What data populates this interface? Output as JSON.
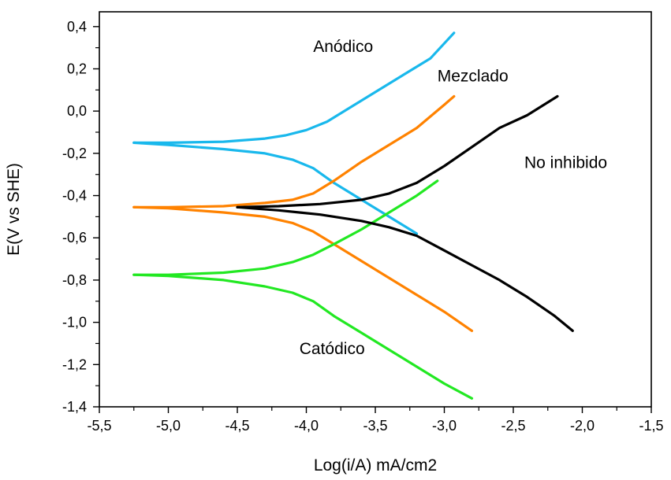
{
  "chart_data": {
    "type": "line",
    "title": "",
    "xlabel": "Log(i/A) mA/cm2",
    "ylabel": "E(V vs SHE)",
    "xlim": [
      -5.5,
      -1.5
    ],
    "ylim": [
      -1.4,
      0.47
    ],
    "xticks": [
      -5.5,
      -5.0,
      -4.5,
      -4.0,
      -3.5,
      -3.0,
      -2.5,
      -2.0,
      -1.5
    ],
    "xtick_labels": [
      "-5,5",
      "-5,0",
      "-4,5",
      "-4,0",
      "-3,5",
      "-3,0",
      "-2,5",
      "-2,0",
      "-1,5"
    ],
    "yticks": [
      0.4,
      0.2,
      0.0,
      -0.2,
      -0.4,
      -0.6,
      -0.8,
      -1.0,
      -1.2,
      -1.4
    ],
    "ytick_labels": [
      "0,4",
      "0,2",
      "0,0",
      "-0,2",
      "-0,4",
      "-0,6",
      "-0,8",
      "-1,0",
      "-1,2",
      "-1,4"
    ],
    "grid": false,
    "series": [
      {
        "name": "Anódico",
        "color": "#19b8ec",
        "branches": [
          {
            "x": [
              -5.25,
              -5.0,
              -4.6,
              -4.3,
              -4.15,
              -4.0,
              -3.85,
              -3.7,
              -3.5,
              -3.3,
              -3.1,
              -2.93
            ],
            "y": [
              -0.15,
              -0.15,
              -0.145,
              -0.13,
              -0.115,
              -0.09,
              -0.05,
              0.01,
              0.09,
              0.17,
              0.25,
              0.37
            ]
          },
          {
            "x": [
              -5.25,
              -5.0,
              -4.6,
              -4.3,
              -4.1,
              -3.95,
              -3.8,
              -3.6,
              -3.4,
              -3.2
            ],
            "y": [
              -0.15,
              -0.16,
              -0.18,
              -0.2,
              -0.23,
              -0.27,
              -0.34,
              -0.42,
              -0.5,
              -0.58
            ]
          }
        ]
      },
      {
        "name": "Mezclado",
        "color": "#ff8200",
        "branches": [
          {
            "x": [
              -5.25,
              -5.0,
              -4.6,
              -4.3,
              -4.1,
              -3.95,
              -3.8,
              -3.6,
              -3.4,
              -3.2,
              -3.0,
              -2.93
            ],
            "y": [
              -0.455,
              -0.455,
              -0.45,
              -0.435,
              -0.42,
              -0.39,
              -0.33,
              -0.24,
              -0.16,
              -0.08,
              0.03,
              0.07
            ]
          },
          {
            "x": [
              -5.25,
              -5.0,
              -4.6,
              -4.3,
              -4.1,
              -3.95,
              -3.8,
              -3.6,
              -3.4,
              -3.2,
              -3.0,
              -2.8
            ],
            "y": [
              -0.455,
              -0.46,
              -0.48,
              -0.5,
              -0.53,
              -0.57,
              -0.63,
              -0.71,
              -0.79,
              -0.87,
              -0.95,
              -1.04
            ]
          }
        ]
      },
      {
        "name": "Catódico",
        "color": "#22e822",
        "branches": [
          {
            "x": [
              -5.25,
              -5.0,
              -4.6,
              -4.3,
              -4.1,
              -3.95,
              -3.8,
              -3.6,
              -3.4,
              -3.2,
              -3.05
            ],
            "y": [
              -0.775,
              -0.775,
              -0.765,
              -0.745,
              -0.715,
              -0.68,
              -0.63,
              -0.56,
              -0.48,
              -0.4,
              -0.33
            ]
          },
          {
            "x": [
              -5.25,
              -5.0,
              -4.6,
              -4.3,
              -4.1,
              -3.95,
              -3.8,
              -3.6,
              -3.4,
              -3.2,
              -3.0,
              -2.8
            ],
            "y": [
              -0.775,
              -0.78,
              -0.8,
              -0.83,
              -0.86,
              -0.9,
              -0.97,
              -1.05,
              -1.13,
              -1.21,
              -1.29,
              -1.36
            ]
          }
        ]
      },
      {
        "name": "No inhibido",
        "color": "#000000",
        "branches": [
          {
            "x": [
              -4.5,
              -4.2,
              -3.9,
              -3.6,
              -3.4,
              -3.2,
              -3.0,
              -2.8,
              -2.6,
              -2.4,
              -2.18
            ],
            "y": [
              -0.455,
              -0.45,
              -0.44,
              -0.42,
              -0.39,
              -0.34,
              -0.26,
              -0.17,
              -0.08,
              -0.02,
              0.07
            ]
          },
          {
            "x": [
              -4.5,
              -4.2,
              -3.9,
              -3.6,
              -3.4,
              -3.2,
              -3.0,
              -2.8,
              -2.6,
              -2.4,
              -2.2,
              -2.07
            ],
            "y": [
              -0.455,
              -0.47,
              -0.49,
              -0.52,
              -0.55,
              -0.59,
              -0.66,
              -0.73,
              -0.8,
              -0.88,
              -0.97,
              -1.04
            ]
          }
        ]
      }
    ],
    "annotations": [
      {
        "text": "Anódico",
        "x": -3.95,
        "y": 0.28
      },
      {
        "text": "Mezclado",
        "x": -3.05,
        "y": 0.14
      },
      {
        "text": "No inhibido",
        "x": -2.42,
        "y": -0.27
      },
      {
        "text": "Catódico",
        "x": -4.05,
        "y": -1.15
      }
    ]
  }
}
